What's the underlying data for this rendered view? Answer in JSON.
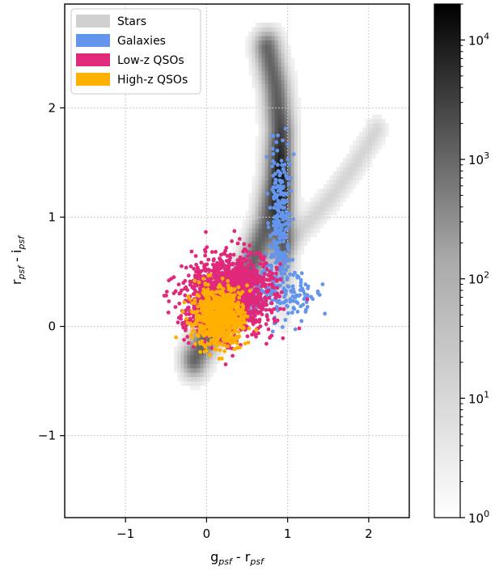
{
  "chart_data": {
    "type": "scatter",
    "title": "",
    "xlabel": {
      "base": "g",
      "sub1": "psf",
      "mid": " - r",
      "sub2": "psf"
    },
    "ylabel": {
      "base": "r",
      "sub1": "psf",
      "mid": " - i",
      "sub2": "psf"
    },
    "xlim": [
      -1.75,
      2.5
    ],
    "ylim": [
      -1.75,
      2.95
    ],
    "xticks": [
      -1,
      0,
      1,
      2
    ],
    "xtick_labels": [
      "−1",
      "0",
      "1",
      "2"
    ],
    "yticks": [
      -1,
      0,
      1,
      2
    ],
    "ytick_labels": [
      "−1",
      "0",
      "1",
      "2"
    ],
    "grid": true,
    "legend_position": "top-left",
    "legend": [
      {
        "label": "Stars",
        "color": "#d0d0d0"
      },
      {
        "label": "Galaxies",
        "color": "#6495ed"
      },
      {
        "label": "Low-z QSOs",
        "color": "#e0297a"
      },
      {
        "label": "High-z QSOs",
        "color": "#ffb000"
      }
    ],
    "colorbar": {
      "scale": "log",
      "range": [
        1,
        20000
      ],
      "ticks": [
        1,
        10,
        100,
        1000,
        10000
      ],
      "tick_labels": [
        {
          "base": "10",
          "exp": "0"
        },
        {
          "base": "10",
          "exp": "1"
        },
        {
          "base": "10",
          "exp": "2"
        },
        {
          "base": "10",
          "exp": "3"
        },
        {
          "base": "10",
          "exp": "4"
        }
      ]
    },
    "series": [
      {
        "type": "density",
        "color": "#000000",
        "ridges": [
          {
            "points": [
              [
                -0.15,
                -0.3
              ],
              [
                0.1,
                0.05
              ],
              [
                0.35,
                0.3
              ],
              [
                0.55,
                0.55
              ],
              [
                0.75,
                0.95
              ],
              [
                0.85,
                1.35
              ],
              [
                0.9,
                1.8
              ],
              [
                0.85,
                2.2
              ],
              [
                0.75,
                2.55
              ]
            ],
            "width": 0.11,
            "amp": 1.0
          },
          {
            "points": [
              [
                0.95,
                0.7
              ],
              [
                1.25,
                0.95
              ],
              [
                1.55,
                1.2
              ],
              [
                1.85,
                1.5
              ],
              [
                2.1,
                1.8
              ]
            ],
            "width": 0.08,
            "amp": 0.25
          }
        ],
        "cores": [
          {
            "center": [
              0.95,
              1.05
            ],
            "sigma": [
              0.09,
              0.45
            ],
            "amp": 1.0
          }
        ]
      },
      {
        "type": "scatter",
        "color": "#6495ed",
        "clusters": [
          {
            "center": [
              0.9,
              0.95
            ],
            "sigma": [
              0.06,
              0.35
            ],
            "n": 240
          },
          {
            "center": [
              0.75,
              0.35
            ],
            "sigma": [
              0.2,
              0.13
            ],
            "n": 150
          },
          {
            "center": [
              1.15,
              0.25
            ],
            "sigma": [
              0.12,
              0.1
            ],
            "n": 45
          }
        ]
      },
      {
        "type": "scatter",
        "color": "#e0297a",
        "clusters": [
          {
            "center": [
              0.3,
              0.3
            ],
            "sigma": [
              0.26,
              0.17
            ],
            "n": 1300
          },
          {
            "center": [
              0.05,
              0.15
            ],
            "sigma": [
              0.15,
              0.15
            ],
            "n": 350
          }
        ]
      },
      {
        "type": "scatter",
        "color": "#ffb000",
        "clusters": [
          {
            "center": [
              0.15,
              0.1
            ],
            "sigma": [
              0.15,
              0.13
            ],
            "n": 800
          }
        ]
      }
    ]
  }
}
